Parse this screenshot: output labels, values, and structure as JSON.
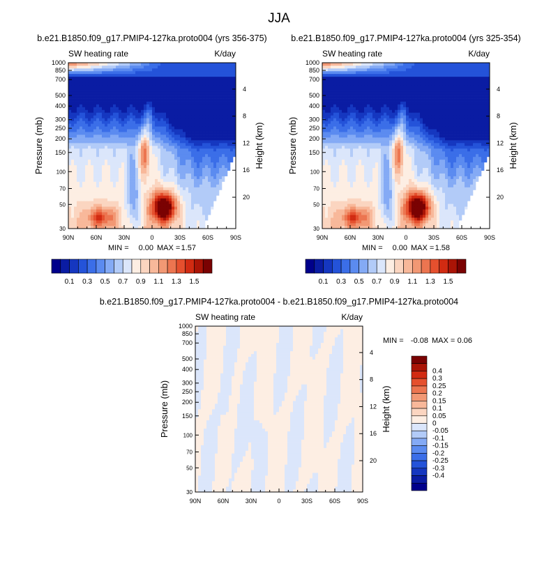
{
  "page": {
    "title": "JJA"
  },
  "palettes": {
    "main": [
      "#00008b",
      "#0a1ca3",
      "#1537c0",
      "#2453d9",
      "#3b6ee8",
      "#5b8bf0",
      "#84aaf5",
      "#b2cbf8",
      "#dbe6fb",
      "#fdeee3",
      "#fbd5c0",
      "#f8b89a",
      "#f29874",
      "#ec7550",
      "#e5502e",
      "#d12b12",
      "#aa1406",
      "#7a0202"
    ],
    "diff": [
      "#00008b",
      "#0a1ca3",
      "#1537c0",
      "#2453d9",
      "#3b6ee8",
      "#5b8bf0",
      "#84aaf5",
      "#b2cbf8",
      "#dbe6fb",
      "#fdeee3",
      "#fbd5c0",
      "#f8b89a",
      "#f29874",
      "#ec7550",
      "#e5502e",
      "#d12b12",
      "#aa1406",
      "#7a0202"
    ]
  },
  "chart_data": [
    {
      "type": "heatmap",
      "id": "panel1",
      "title": "b.e21.B1850.f09_g17.PMIP4-127ka.proto004 (yrs 356-375)",
      "left_label": "SW heating rate",
      "right_label": "K/day",
      "xlabel": "",
      "ylabel": "Pressure (mb)",
      "y2label": "Height (km)",
      "x_ticks": [
        "90N",
        "60N",
        "30N",
        "0",
        "30S",
        "60S",
        "90S"
      ],
      "x_range": [
        90,
        -90
      ],
      "y_ticks": [
        1000,
        850,
        700,
        500,
        400,
        300,
        250,
        200,
        150,
        100,
        70,
        50,
        30
      ],
      "y_range_mb": [
        1000,
        30
      ],
      "height_ticks_km": [
        4,
        8,
        12,
        16,
        20
      ],
      "stats": {
        "min_label": "MIN =",
        "min": "0.00",
        "max_label": "MAX =",
        "max": "1.57"
      },
      "colorbar_labels": [
        "0.1",
        "0.3",
        "0.5",
        "0.7",
        "0.9",
        "1.1",
        "1.3",
        "1.5"
      ]
    },
    {
      "type": "heatmap",
      "id": "panel2",
      "title": "b.e21.B1850.f09_g17.PMIP4-127ka.proto004 (yrs 325-354)",
      "left_label": "SW heating rate",
      "right_label": "K/day",
      "xlabel": "",
      "ylabel": "Pressure (mb)",
      "y2label": "Height (km)",
      "x_ticks": [
        "90N",
        "60N",
        "30N",
        "0",
        "30S",
        "60S",
        "90S"
      ],
      "x_range": [
        90,
        -90
      ],
      "y_ticks": [
        1000,
        850,
        700,
        500,
        400,
        300,
        250,
        200,
        150,
        100,
        70,
        50,
        30
      ],
      "y_range_mb": [
        1000,
        30
      ],
      "height_ticks_km": [
        4,
        8,
        12,
        16,
        20
      ],
      "stats": {
        "min_label": "MIN =",
        "min": "0.00",
        "max_label": "MAX =",
        "max": "1.58"
      },
      "colorbar_labels": [
        "0.1",
        "0.3",
        "0.5",
        "0.7",
        "0.9",
        "1.1",
        "1.3",
        "1.5"
      ]
    },
    {
      "type": "heatmap",
      "id": "panel3",
      "title": "b.e21.B1850.f09_g17.PMIP4-127ka.proto004 - b.e21.B1850.f09_g17.PMIP4-127ka.proto004",
      "left_label": "SW heating rate",
      "right_label": "K/day",
      "xlabel": "",
      "ylabel": "Pressure (mb)",
      "y2label": "Height (km)",
      "x_ticks": [
        "90N",
        "60N",
        "30N",
        "0",
        "30S",
        "60S",
        "90S"
      ],
      "x_range": [
        90,
        -90
      ],
      "y_ticks": [
        1000,
        850,
        700,
        500,
        400,
        300,
        250,
        200,
        150,
        100,
        70,
        50,
        30
      ],
      "y_range_mb": [
        1000,
        30
      ],
      "height_ticks_km": [
        4,
        8,
        12,
        16,
        20
      ],
      "stats": {
        "min_label": "MIN =",
        "min": "-0.08",
        "max_label": "MAX =",
        "max": "0.06"
      },
      "colorbar_labels": [
        "0.4",
        "0.3",
        "0.25",
        "0.2",
        "0.15",
        "0.1",
        "0.05",
        "0",
        "-0.05",
        "-0.1",
        "-0.15",
        "-0.2",
        "-0.25",
        "-0.3",
        "-0.4"
      ]
    }
  ]
}
